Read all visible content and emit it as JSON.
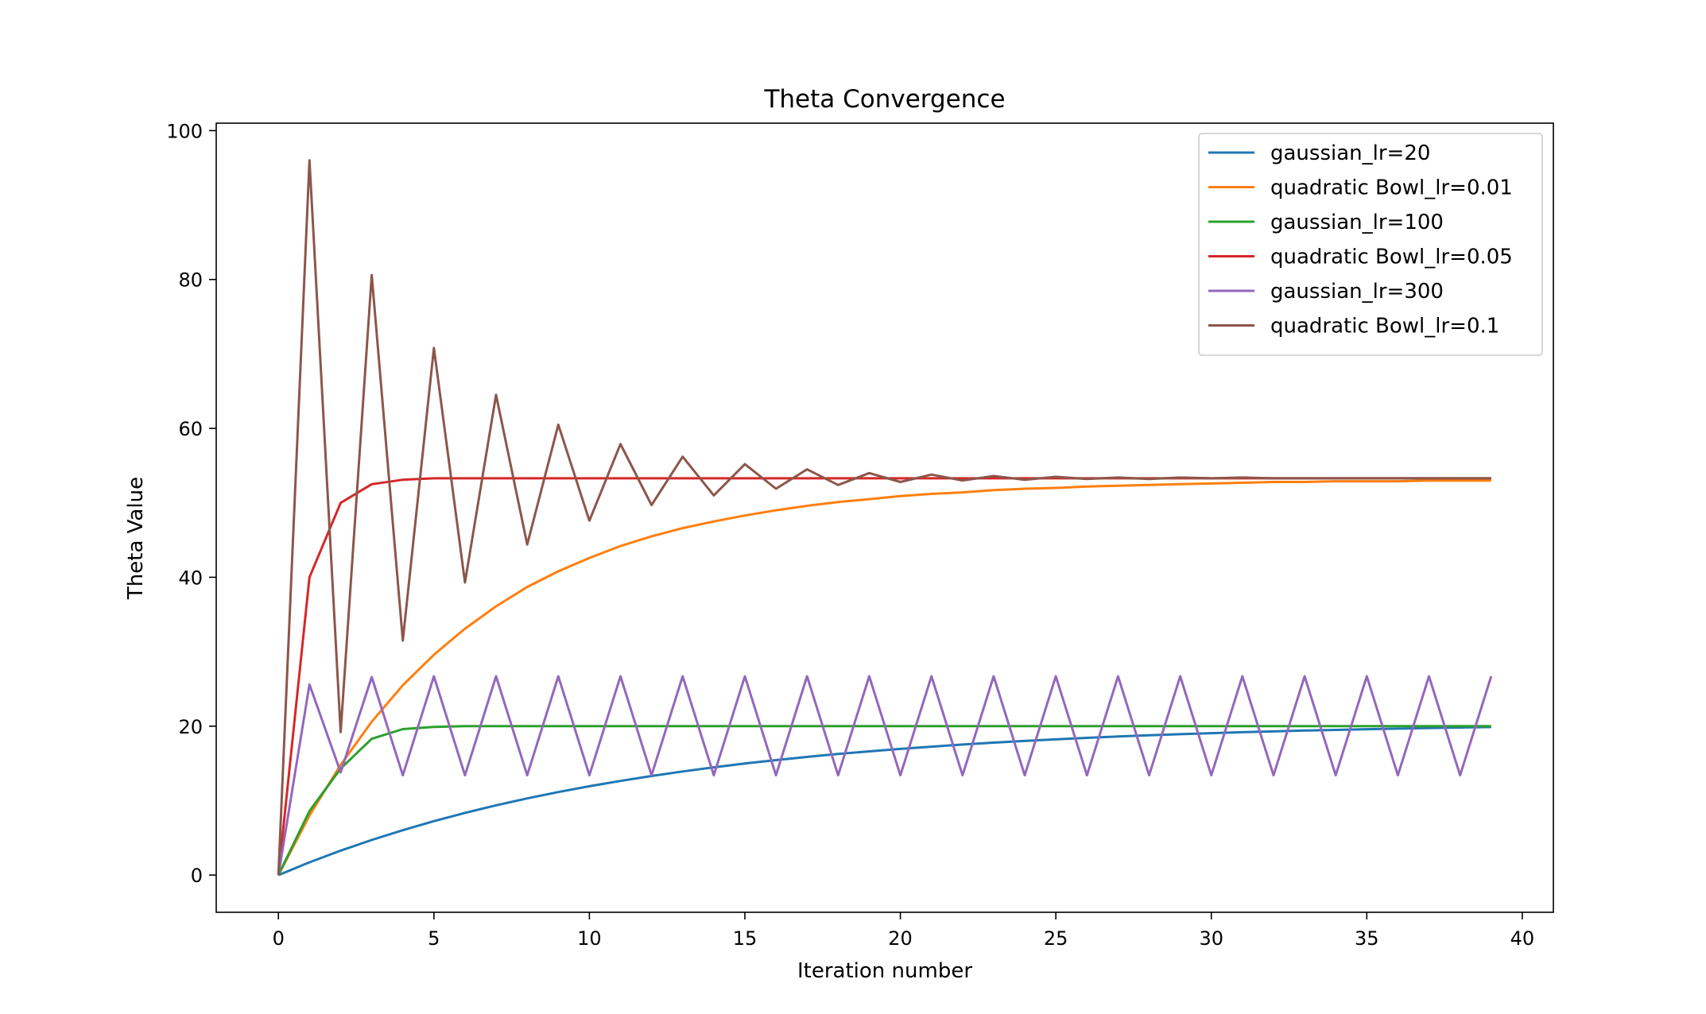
{
  "chart_data": {
    "type": "line",
    "title": "Theta Convergence",
    "xlabel": "Iteration number",
    "ylabel": "Theta Value",
    "xlim": [
      -2,
      41
    ],
    "ylim": [
      -5,
      101
    ],
    "xticks": [
      0,
      5,
      10,
      15,
      20,
      25,
      30,
      35,
      40
    ],
    "yticks": [
      0,
      20,
      40,
      60,
      80,
      100
    ],
    "grid": false,
    "legend_position": "upper right",
    "series": [
      {
        "name": "gaussian_lr=20",
        "color": "#1f77b4",
        "x": [
          0,
          1,
          2,
          3,
          4,
          5,
          6,
          7,
          8,
          9,
          10,
          11,
          12,
          13,
          14,
          15,
          16,
          17,
          18,
          19,
          20,
          21,
          22,
          23,
          24,
          25,
          26,
          27,
          28,
          29,
          30,
          31,
          32,
          33,
          34,
          35,
          36,
          37,
          38,
          39
        ],
        "values": [
          0,
          1.71,
          3.28,
          4.71,
          6.03,
          7.24,
          8.35,
          9.37,
          10.3,
          11.15,
          11.93,
          12.65,
          13.31,
          13.92,
          14.47,
          14.98,
          15.44,
          15.87,
          16.26,
          16.62,
          16.95,
          17.25,
          17.53,
          17.79,
          18.02,
          18.23,
          18.43,
          18.61,
          18.77,
          18.92,
          19.06,
          19.19,
          19.3,
          19.41,
          19.5,
          19.59,
          19.67,
          19.75,
          19.82,
          19.88
        ]
      },
      {
        "name": "quadratic Bowl_lr=0.01",
        "color": "#ff7f0e",
        "x": [
          0,
          1,
          2,
          3,
          4,
          5,
          6,
          7,
          8,
          9,
          10,
          11,
          12,
          13,
          14,
          15,
          16,
          17,
          18,
          19,
          20,
          21,
          22,
          23,
          24,
          25,
          26,
          27,
          28,
          29,
          30,
          31,
          32,
          33,
          34,
          35,
          36,
          37,
          38,
          39
        ],
        "values": [
          0,
          8.0,
          14.8,
          20.6,
          25.5,
          29.6,
          33.1,
          36.1,
          38.7,
          40.8,
          42.6,
          44.2,
          45.5,
          46.6,
          47.5,
          48.3,
          49.0,
          49.6,
          50.1,
          50.5,
          50.9,
          51.2,
          51.4,
          51.7,
          51.9,
          52.0,
          52.2,
          52.3,
          52.4,
          52.5,
          52.6,
          52.7,
          52.8,
          52.8,
          52.9,
          52.9,
          52.9,
          53.0,
          53.0,
          53.0
        ]
      },
      {
        "name": "gaussian_lr=100",
        "color": "#2ca02c",
        "x": [
          0,
          1,
          2,
          3,
          4,
          5,
          6,
          7,
          8,
          9,
          10,
          11,
          12,
          13,
          14,
          15,
          16,
          17,
          18,
          19,
          20,
          21,
          22,
          23,
          24,
          25,
          26,
          27,
          28,
          29,
          30,
          31,
          32,
          33,
          34,
          35,
          36,
          37,
          38,
          39
        ],
        "values": [
          0,
          8.6,
          14.3,
          18.3,
          19.6,
          19.9,
          20,
          20,
          20,
          20,
          20,
          20,
          20,
          20,
          20,
          20,
          20,
          20,
          20,
          20,
          20,
          20,
          20,
          20,
          20,
          20,
          20,
          20,
          20,
          20,
          20,
          20,
          20,
          20,
          20,
          20,
          20,
          20,
          20,
          20
        ]
      },
      {
        "name": "quadratic Bowl_lr=0.05",
        "color": "#d62728",
        "x": [
          0,
          1,
          2,
          3,
          4,
          5,
          6,
          7,
          8,
          9,
          10,
          11,
          12,
          13,
          14,
          15,
          16,
          17,
          18,
          19,
          20,
          21,
          22,
          23,
          24,
          25,
          26,
          27,
          28,
          29,
          30,
          31,
          32,
          33,
          34,
          35,
          36,
          37,
          38,
          39
        ],
        "values": [
          0,
          40.0,
          50.0,
          52.5,
          53.1,
          53.3,
          53.3,
          53.3,
          53.3,
          53.3,
          53.3,
          53.3,
          53.3,
          53.3,
          53.3,
          53.3,
          53.3,
          53.3,
          53.3,
          53.3,
          53.3,
          53.3,
          53.3,
          53.3,
          53.3,
          53.3,
          53.3,
          53.3,
          53.3,
          53.3,
          53.3,
          53.3,
          53.3,
          53.3,
          53.3,
          53.3,
          53.3,
          53.3,
          53.3,
          53.3
        ]
      },
      {
        "name": "gaussian_lr=300",
        "color": "#9467bd",
        "x": [
          0,
          1,
          2,
          3,
          4,
          5,
          6,
          7,
          8,
          9,
          10,
          11,
          12,
          13,
          14,
          15,
          16,
          17,
          18,
          19,
          20,
          21,
          22,
          23,
          24,
          25,
          26,
          27,
          28,
          29,
          30,
          31,
          32,
          33,
          34,
          35,
          36,
          37,
          38,
          39
        ],
        "values": [
          0,
          25.6,
          13.8,
          26.6,
          13.4,
          26.7,
          13.4,
          26.7,
          13.4,
          26.7,
          13.4,
          26.7,
          13.4,
          26.7,
          13.4,
          26.7,
          13.4,
          26.7,
          13.4,
          26.7,
          13.4,
          26.7,
          13.4,
          26.7,
          13.4,
          26.7,
          13.4,
          26.7,
          13.4,
          26.7,
          13.4,
          26.7,
          13.4,
          26.7,
          13.4,
          26.7,
          13.4,
          26.7,
          13.4,
          26.7
        ]
      },
      {
        "name": "quadratic Bowl_lr=0.1",
        "color": "#8c564b",
        "x": [
          0,
          1,
          2,
          3,
          4,
          5,
          6,
          7,
          8,
          9,
          10,
          11,
          12,
          13,
          14,
          15,
          16,
          17,
          18,
          19,
          20,
          21,
          22,
          23,
          24,
          25,
          26,
          27,
          28,
          29,
          30,
          31,
          32,
          33,
          34,
          35,
          36,
          37,
          38,
          39
        ],
        "values": [
          0,
          96.0,
          19.2,
          80.6,
          31.5,
          70.8,
          39.3,
          64.5,
          44.4,
          60.5,
          47.6,
          57.9,
          49.7,
          56.2,
          51.0,
          55.2,
          51.9,
          54.5,
          52.4,
          54.0,
          52.8,
          53.8,
          53.0,
          53.6,
          53.1,
          53.5,
          53.2,
          53.4,
          53.2,
          53.4,
          53.3,
          53.4,
          53.3,
          53.3,
          53.3,
          53.3,
          53.3,
          53.3,
          53.3,
          53.3
        ]
      }
    ]
  }
}
